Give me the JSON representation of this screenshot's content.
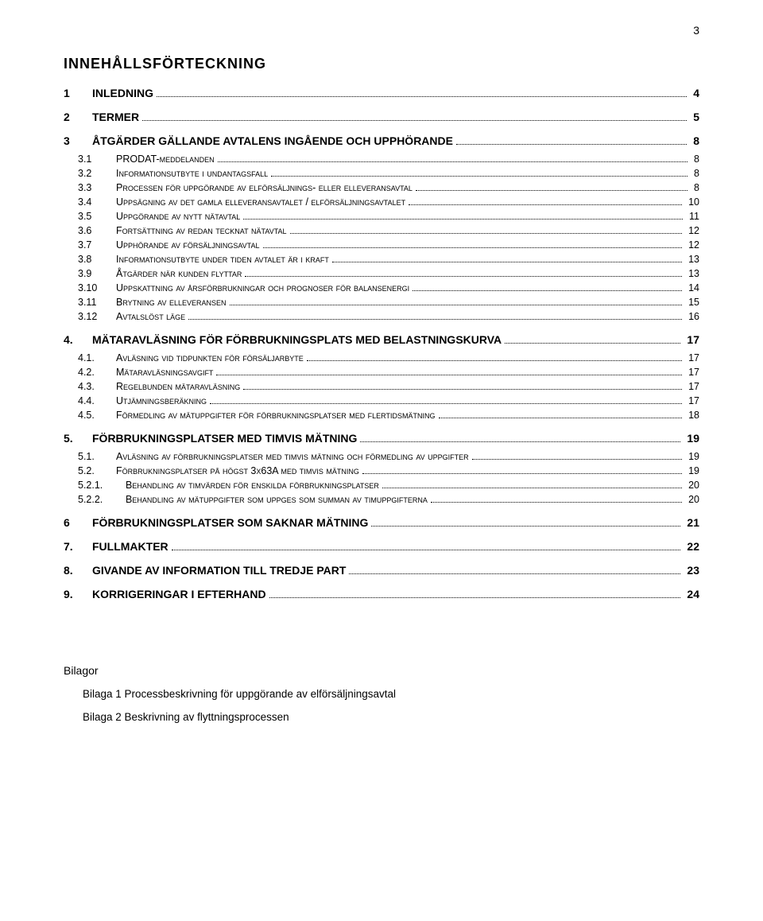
{
  "page_number": "3",
  "title": "INNEHÅLLSFÖRTECKNING",
  "toc": [
    {
      "level": 1,
      "num": "1",
      "text": "INLEDNING",
      "page": "4",
      "smallcaps": false
    },
    {
      "level": 1,
      "num": "2",
      "text": "TERMER",
      "page": "5",
      "smallcaps": false
    },
    {
      "level": 1,
      "num": "3",
      "text": "ÅTGÄRDER GÄLLANDE AVTALENS INGÅENDE OCH UPPHÖRANDE",
      "page": "8",
      "smallcaps": false
    },
    {
      "level": 2,
      "num": "3.1",
      "text": "PRODAT-meddelanden",
      "page": "8",
      "smallcaps": true
    },
    {
      "level": 2,
      "num": "3.2",
      "text": "Informationsutbyte i undantagsfall",
      "page": "8",
      "smallcaps": true
    },
    {
      "level": 2,
      "num": "3.3",
      "text": "Processen för uppgörande av elförsäljnings- eller elleveransavtal",
      "page": "8",
      "smallcaps": true
    },
    {
      "level": 2,
      "num": "3.4",
      "text": "Uppsägning av det gamla elleveransavtalet / elförsäljningsavtalet",
      "page": "10",
      "smallcaps": true
    },
    {
      "level": 2,
      "num": "3.5",
      "text": "Uppgörande av nytt nätavtal",
      "page": "11",
      "smallcaps": true
    },
    {
      "level": 2,
      "num": "3.6",
      "text": "Fortsättning av redan tecknat nätavtal",
      "page": "12",
      "smallcaps": true
    },
    {
      "level": 2,
      "num": "3.7",
      "text": "Upphörande av försäljningsavtal",
      "page": "12",
      "smallcaps": true
    },
    {
      "level": 2,
      "num": "3.8",
      "text": "Informationsutbyte under tiden avtalet är i kraft",
      "page": "13",
      "smallcaps": true
    },
    {
      "level": 2,
      "num": "3.9",
      "text": "Åtgärder när kunden flyttar",
      "page": "13",
      "smallcaps": true
    },
    {
      "level": 2,
      "num": "3.10",
      "text": "Uppskattning av årsförbrukningar och prognoser för balansenergi",
      "page": "14",
      "smallcaps": true
    },
    {
      "level": 2,
      "num": "3.11",
      "text": "Brytning av elleveransen",
      "page": "15",
      "smallcaps": true
    },
    {
      "level": 2,
      "num": "3.12",
      "text": "Avtalslöst läge",
      "page": "16",
      "smallcaps": true
    },
    {
      "level": 1,
      "num": "4.",
      "text": "MÄTARAVLÄSNING FÖR FÖRBRUKNINGSPLATS MED BELASTNINGSKURVA",
      "page": "17",
      "smallcaps": false
    },
    {
      "level": 2,
      "num": "4.1.",
      "text": "Avläsning vid tidpunkten för försäljarbyte",
      "page": "17",
      "smallcaps": true
    },
    {
      "level": 2,
      "num": "4.2.",
      "text": "Mätaravläsningsavgift",
      "page": "17",
      "smallcaps": true
    },
    {
      "level": 2,
      "num": "4.3.",
      "text": "Regelbunden mätaravläsning",
      "page": "17",
      "smallcaps": true
    },
    {
      "level": 2,
      "num": "4.4.",
      "text": "Utjämningsberäkning",
      "page": "17",
      "smallcaps": true
    },
    {
      "level": 2,
      "num": "4.5.",
      "text": "Förmedling av mätuppgifter för förbrukningsplatser med flertidsmätning",
      "page": "18",
      "smallcaps": true
    },
    {
      "level": 1,
      "num": "5.",
      "text": "FÖRBRUKNINGSPLATSER MED TIMVIS MÄTNING",
      "page": "19",
      "smallcaps": false
    },
    {
      "level": 2,
      "num": "5.1.",
      "text": "Avläsning av förbrukningsplatser med timvis mätning och förmedling av uppgifter",
      "page": "19",
      "smallcaps": true
    },
    {
      "level": 2,
      "num": "5.2.",
      "text": "Förbrukningsplatser på högst 3x63A med timvis mätning",
      "page": "19",
      "smallcaps": true
    },
    {
      "level": 3,
      "num": "5.2.1.",
      "text": "Behandling av timvärden för enskilda förbrukningsplatser",
      "page": "20",
      "smallcaps": true
    },
    {
      "level": 3,
      "num": "5.2.2.",
      "text": "Behandling av mätuppgifter som uppges som summan av timuppgifterna",
      "page": "20",
      "smallcaps": true
    },
    {
      "level": 1,
      "num": "6",
      "text": "FÖRBRUKNINGSPLATSER SOM SAKNAR MÄTNING",
      "page": "21",
      "smallcaps": false
    },
    {
      "level": 1,
      "num": "7.",
      "text": "FULLMAKTER",
      "page": "22",
      "smallcaps": false
    },
    {
      "level": 1,
      "num": "8.",
      "text": "GIVANDE AV INFORMATION TILL TREDJE PART",
      "page": "23",
      "smallcaps": false
    },
    {
      "level": 1,
      "num": "9.",
      "text": "KORRIGERINGAR I EFTERHAND",
      "page": "24",
      "smallcaps": false
    }
  ],
  "bilagor": {
    "title": "Bilagor",
    "items": [
      {
        "num": "Bilaga 1",
        "text": "Processbeskrivning för uppgörande av elförsäljningsavtal"
      },
      {
        "num": "Bilaga 2",
        "text": "Beskrivning av flyttningsprocessen"
      }
    ]
  }
}
